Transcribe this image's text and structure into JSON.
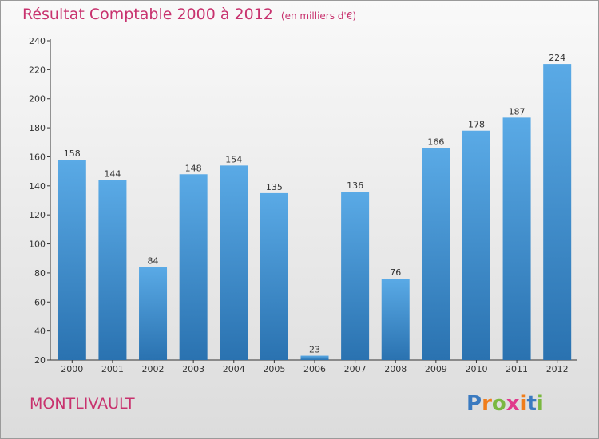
{
  "title": {
    "main": "Résultat Comptable 2000 à 2012",
    "sub": "(en milliers d'€)"
  },
  "location": "MONTLIVAULT",
  "logo": {
    "text": "Proxiti",
    "letters": [
      "P",
      "r",
      "o",
      "x",
      "i",
      "t",
      "i"
    ],
    "colors": [
      "#3a7ac0",
      "#f07d1a",
      "#7ab840",
      "#e03a8c",
      "#f07d1a",
      "#3a7ac0",
      "#7ab840"
    ]
  },
  "colors": {
    "text": "#c8326e",
    "bar_top": "#5aaae6",
    "bar_bottom": "#2a72b0"
  },
  "chart_data": {
    "type": "bar",
    "categories": [
      "2000",
      "2001",
      "2002",
      "2003",
      "2004",
      "2005",
      "2006",
      "2007",
      "2008",
      "2009",
      "2010",
      "2011",
      "2012"
    ],
    "values": [
      158,
      144,
      84,
      148,
      154,
      135,
      23,
      136,
      76,
      166,
      178,
      187,
      224
    ],
    "title": "Résultat Comptable 2000 à 2012",
    "xlabel": "",
    "ylabel": "",
    "ylim": [
      20,
      240
    ],
    "yticks": [
      20,
      40,
      60,
      80,
      100,
      120,
      140,
      160,
      180,
      200,
      220,
      240
    ],
    "grid": false,
    "legend": "none"
  }
}
